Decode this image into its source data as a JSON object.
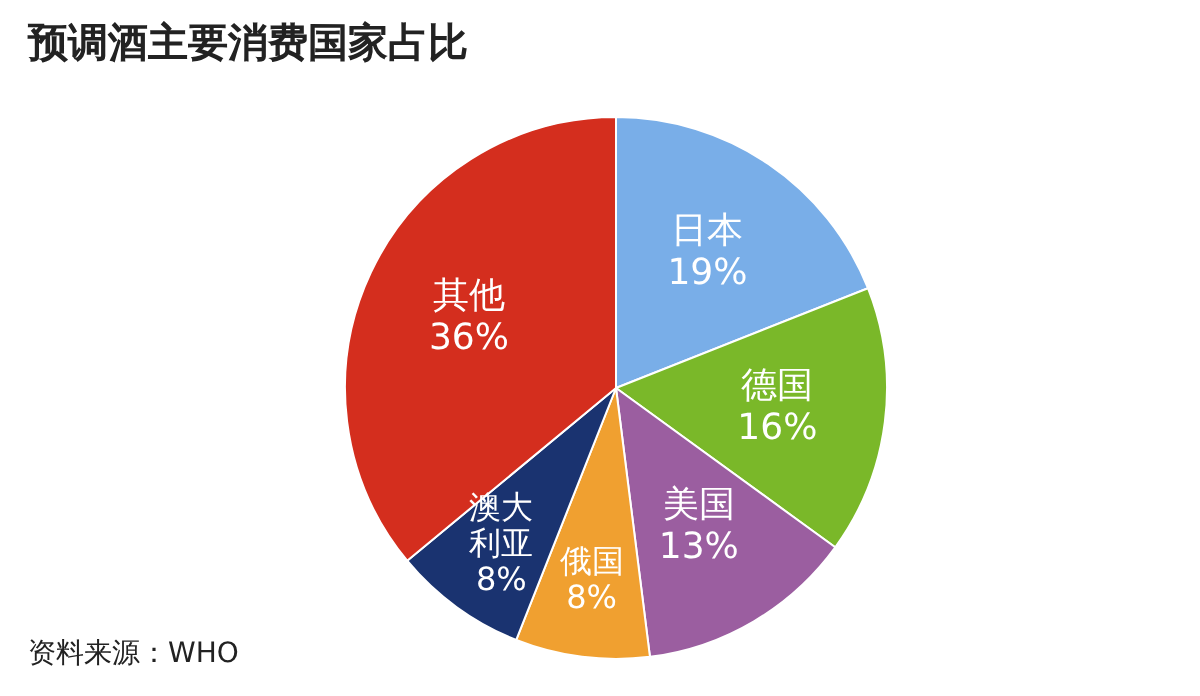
{
  "chart_data": {
    "type": "pie",
    "title": "预调酒主要消费国家占比",
    "categories": [
      "日本",
      "德国",
      "美国",
      "俄国",
      "澳大利亚",
      "其他"
    ],
    "values": [
      19,
      16,
      13,
      8,
      8,
      36
    ],
    "value_labels": [
      "19%",
      "16%",
      "13%",
      "8%",
      "8%",
      "36%"
    ],
    "colors": [
      "#79aee8",
      "#7ab829",
      "#9b5ea0",
      "#f0a030",
      "#1a3370",
      "#d42e1e"
    ],
    "legend": false,
    "annotations": [
      "资料来源：WHO"
    ]
  }
}
